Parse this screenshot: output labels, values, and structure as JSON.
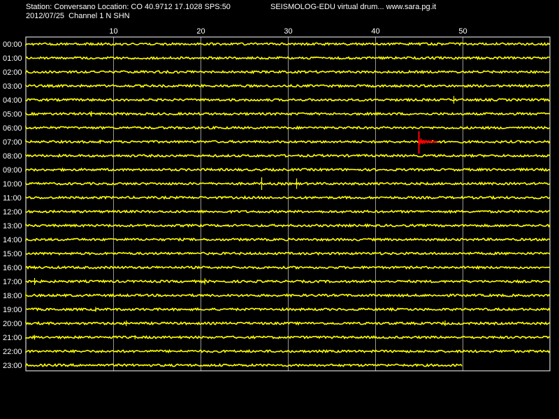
{
  "header": {
    "station_line": "Station: Conversano Location: CO 40.9712 17.1028 SPS:50",
    "date_channel": "2012/07/25  Channel 1 N SHN",
    "program": "SEISMOLOG-EDU virtual drum... www.sara.pg.it"
  },
  "colors": {
    "background": "#000000",
    "trace": "#ffff00",
    "event": "#ff0000",
    "grid": "#ffffff",
    "text": "#ffffff"
  },
  "chart_data": {
    "type": "line",
    "title": "",
    "xlabel": "",
    "ylabel": "",
    "xlim": [
      0,
      60
    ],
    "x_ticks": [
      10,
      20,
      30,
      40,
      50
    ],
    "grid": true,
    "rows": [
      "00:00",
      "01:00",
      "02:00",
      "03:00",
      "04:00",
      "05:00",
      "06:00",
      "07:00",
      "08:00",
      "09:00",
      "10:00",
      "11:00",
      "12:00",
      "13:00",
      "14:00",
      "15:00",
      "16:00",
      "17:00",
      "18:00",
      "19:00",
      "20:00",
      "21:00",
      "22:00",
      "23:00"
    ],
    "last_row_end_minute": 50,
    "event": {
      "row": "07:00",
      "minute": 45
    },
    "spikes": [
      {
        "row": "04:00",
        "minute": 49,
        "amp": 0.55
      },
      {
        "row": "05:00",
        "minute": 7.5,
        "amp": 0.4
      },
      {
        "row": "07:00",
        "minute": 8.5,
        "amp": 0.3
      },
      {
        "row": "10:00",
        "minute": 27,
        "amp": 0.9
      },
      {
        "row": "10:00",
        "minute": 31,
        "amp": 0.75
      },
      {
        "row": "17:00",
        "minute": 1,
        "amp": 0.5
      },
      {
        "row": "17:00",
        "minute": 20.5,
        "amp": 0.45
      },
      {
        "row": "18:00",
        "minute": 0,
        "amp": 0.5
      },
      {
        "row": "19:00",
        "minute": 8,
        "amp": 0.35
      },
      {
        "row": "20:00",
        "minute": 11.5,
        "amp": 0.4
      },
      {
        "row": "20:00",
        "minute": 48,
        "amp": 0.4
      },
      {
        "row": "21:00",
        "minute": 1,
        "amp": 0.35
      },
      {
        "row": "21:00",
        "minute": 12.5,
        "amp": 0.3
      }
    ]
  }
}
